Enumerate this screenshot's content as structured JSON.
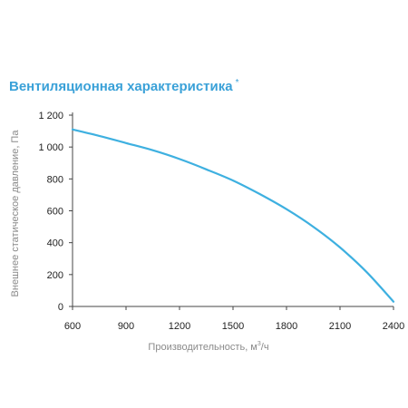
{
  "title": "Вентиляционная характеристика",
  "title_note": "*",
  "colors": {
    "title": "#3aa1d8",
    "curve": "#3eb0e0",
    "axis": "#444444",
    "label": "#8a8a8a"
  },
  "chart_data": {
    "type": "line",
    "title": "Вентиляционная характеристика *",
    "xlabel": "Производительность, м³/ч",
    "xlabel_main": "Производительность, м",
    "xlabel_sup": "3",
    "xlabel_tail": "/ч",
    "ylabel": "Внешнее статическое давление, Па",
    "xlim": [
      600,
      2400
    ],
    "ylim": [
      0,
      1200
    ],
    "x_ticks": [
      600,
      900,
      1200,
      1500,
      1800,
      2100,
      2400
    ],
    "y_ticks": [
      0,
      200,
      400,
      600,
      800,
      1000,
      1200
    ],
    "x_tick_labels": [
      "600",
      "900",
      "1200",
      "1500",
      "1800",
      "2100",
      "2400"
    ],
    "y_tick_labels": [
      "0",
      "200",
      "400",
      "600",
      "800",
      "1 000",
      "1 200"
    ],
    "grid": false,
    "series": [
      {
        "x": [
          600,
          750,
          900,
          1050,
          1200,
          1350,
          1500,
          1650,
          1800,
          1950,
          2100,
          2250,
          2400
        ],
        "y": [
          1110,
          1070,
          1025,
          980,
          925,
          860,
          790,
          705,
          610,
          500,
          370,
          215,
          30
        ]
      }
    ]
  }
}
